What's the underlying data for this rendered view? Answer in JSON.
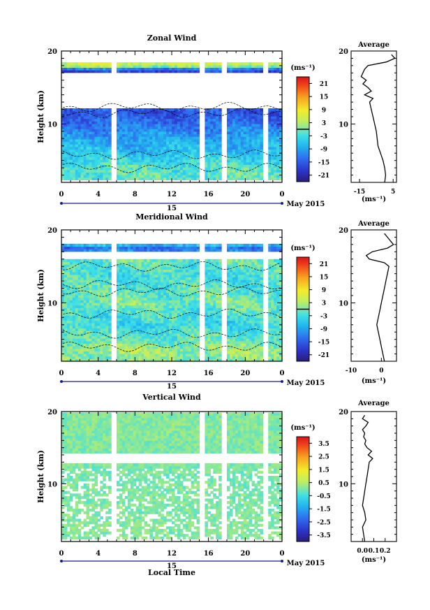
{
  "figure": {
    "xlabel": "Local Time",
    "avg_title": "Average",
    "date_label": "May 2015",
    "day_label": "15",
    "unit_label": "(ms⁻¹)"
  },
  "chart_data": [
    {
      "type": "heatmap",
      "title": "Zonal Wind",
      "ylabel": "Height (km)",
      "xlabel": "",
      "x_ticks": [
        "0",
        "4",
        "8",
        "12",
        "16",
        "20",
        "0"
      ],
      "x_range_hours": [
        0,
        24
      ],
      "ylim_km": [
        2,
        20
      ],
      "y_ticks": [
        10,
        20
      ],
      "contour_zero": true,
      "colorbar": {
        "unit": "(ms⁻¹)",
        "ticks": [
          "21",
          "15",
          "9",
          "3",
          "-3",
          "-9",
          "-15",
          "-21"
        ],
        "range": [
          -24,
          24
        ]
      },
      "field_profile": [
        {
          "h": 2.0,
          "v": -1
        },
        {
          "h": 4.0,
          "v": -2
        },
        {
          "h": 6.0,
          "v": -6
        },
        {
          "h": 8.0,
          "v": -9
        },
        {
          "h": 10.0,
          "v": -13
        },
        {
          "h": 11.5,
          "v": -16
        },
        {
          "h": 13.0,
          "v": -14
        },
        {
          "h": 16.0,
          "v": -12
        },
        {
          "h": 17.4,
          "v": -18
        },
        {
          "h": 18.0,
          "v": 4
        },
        {
          "h": 18.5,
          "v": 6
        }
      ],
      "data_coverage_km": [
        [
          2.3,
          12.0
        ],
        [
          17.1,
          18.6
        ]
      ],
      "gaps_hours": [
        5.8,
        15.3,
        17.8,
        22.3
      ],
      "average_profile": {
        "xlim": [
          -20,
          7
        ],
        "x_ticks": [
          "-15",
          "5"
        ],
        "h": [
          2,
          3,
          4,
          5,
          6,
          7,
          8,
          9,
          10,
          11,
          12,
          13,
          13.5,
          14,
          14.5,
          15,
          15.5,
          16,
          16.5,
          17,
          17.5,
          18,
          18.5,
          19,
          19.5
        ],
        "v": [
          0,
          0.5,
          0,
          -1,
          -2.5,
          -4,
          -4.5,
          -5,
          -6,
          -7,
          -8,
          -9,
          -7,
          -12,
          -8,
          -10,
          -13,
          -11,
          -14,
          -13,
          -12,
          -10,
          1,
          6,
          4
        ]
      }
    },
    {
      "type": "heatmap",
      "title": "Meridional Wind",
      "ylabel": "Height (km)",
      "xlabel": "",
      "x_ticks": [
        "0",
        "4",
        "8",
        "12",
        "16",
        "20",
        "0"
      ],
      "x_range_hours": [
        0,
        24
      ],
      "ylim_km": [
        2,
        20
      ],
      "y_ticks": [
        10,
        20
      ],
      "contour_zero": true,
      "colorbar": {
        "unit": "(ms⁻¹)",
        "ticks": [
          "21",
          "15",
          "9",
          "3",
          "-3",
          "-9",
          "-15",
          "-21"
        ],
        "range": [
          -24,
          24
        ]
      },
      "field_profile": [
        {
          "h": 2.0,
          "v": 0
        },
        {
          "h": 3.5,
          "v": 2
        },
        {
          "h": 5.0,
          "v": -1
        },
        {
          "h": 7.0,
          "v": -4
        },
        {
          "h": 9.0,
          "v": -2
        },
        {
          "h": 10.0,
          "v": 0
        },
        {
          "h": 12.0,
          "v": -2
        },
        {
          "h": 14.0,
          "v": -3
        },
        {
          "h": 16.0,
          "v": -1
        },
        {
          "h": 17.3,
          "v": -12
        },
        {
          "h": 17.8,
          "v": -14
        },
        {
          "h": 18.2,
          "v": 8
        }
      ],
      "data_coverage_km": [
        [
          2.0,
          16.0
        ],
        [
          16.9,
          18.2
        ]
      ],
      "gaps_hours": [
        5.8,
        15.3,
        17.8,
        22.3
      ],
      "average_profile": {
        "xlim": [
          -10,
          5
        ],
        "x_ticks": [
          "-10",
          "0"
        ],
        "h": [
          2,
          3,
          4,
          5,
          6,
          7,
          8,
          9,
          10,
          11,
          12,
          13,
          14,
          15,
          15.5,
          16,
          16.5,
          17,
          17.5,
          18,
          18.5,
          19,
          19.5
        ],
        "v": [
          1,
          0.5,
          0,
          -0.5,
          -1,
          -1.5,
          -1,
          -0.5,
          0,
          0.5,
          1,
          1.5,
          2,
          2.5,
          1,
          -4,
          -5,
          -3,
          2,
          4,
          3,
          2,
          1
        ]
      }
    },
    {
      "type": "heatmap",
      "title": "Vertical Wind",
      "ylabel": "Height (km)",
      "xlabel": "Local Time",
      "x_ticks": [
        "0",
        "4",
        "8",
        "12",
        "16",
        "20",
        "0"
      ],
      "x_range_hours": [
        0,
        24
      ],
      "ylim_km": [
        2,
        20
      ],
      "y_ticks": [
        10,
        20
      ],
      "contour_zero": false,
      "colorbar": {
        "unit": "(ms⁻¹)",
        "ticks": [
          "3.5",
          "2.5",
          "1.5",
          "0.5",
          "-0.5",
          "-1.5",
          "-2.5",
          "-3.5"
        ],
        "range": [
          -4,
          4
        ]
      },
      "field_profile": [
        {
          "h": 2.0,
          "v": 0.1
        },
        {
          "h": 10.0,
          "v": 0.0
        },
        {
          "h": 20.0,
          "v": 0.1
        }
      ],
      "data_coverage_km": [
        [
          2.2,
          13.0
        ],
        [
          14.4,
          20.0
        ]
      ],
      "gaps_hours": [
        5.8,
        15.3,
        17.8,
        22.3
      ],
      "average_profile": {
        "xlim": [
          -0.1,
          0.3
        ],
        "x_ticks": [
          "0.0",
          "0.1",
          "0.2"
        ],
        "h": [
          2,
          3,
          4,
          5,
          6,
          7,
          8,
          9,
          10,
          11,
          12,
          13,
          13.5,
          14,
          14.5,
          15,
          15.5,
          16,
          16.5,
          17,
          17.5,
          18,
          18.5,
          19,
          19.5
        ],
        "v": [
          0.02,
          0.01,
          0.0,
          0.03,
          0.02,
          0.0,
          0.01,
          0.02,
          0.03,
          0.04,
          0.05,
          0.06,
          0.09,
          0.05,
          0.08,
          0.04,
          0.02,
          0.03,
          0.01,
          0.02,
          0.0,
          0.03,
          0.05,
          0.0,
          0.02
        ]
      }
    }
  ]
}
